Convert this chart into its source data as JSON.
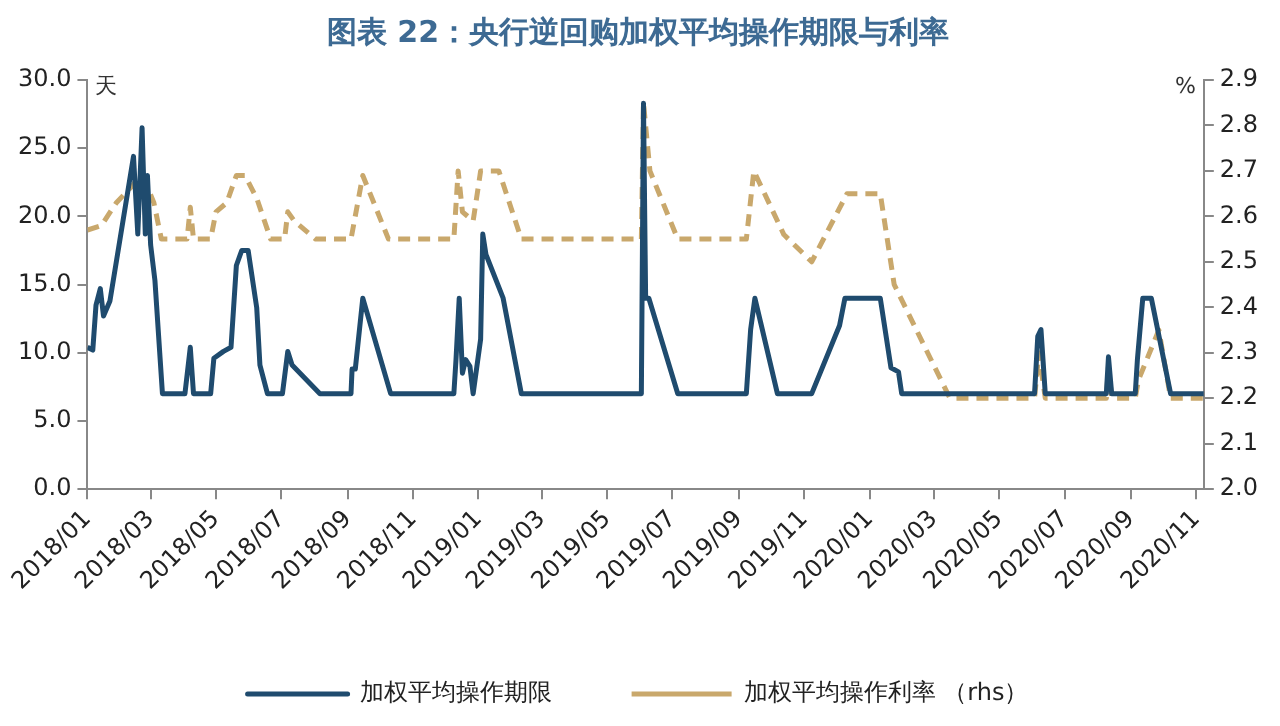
{
  "chart_data": {
    "type": "line",
    "title": "图表 22：央行逆回购加权平均操作期限与利率",
    "ylabel": "天",
    "y2label": "%",
    "xlim": [
      "2018-01-01",
      "2020-11-08"
    ],
    "xticks": [
      {
        "value": "2018-01-01",
        "label": "2018/01"
      },
      {
        "value": "2018-03-01",
        "label": "2018/03"
      },
      {
        "value": "2018-05-01",
        "label": "2018/05"
      },
      {
        "value": "2018-07-01",
        "label": "2018/07"
      },
      {
        "value": "2018-09-01",
        "label": "2018/09"
      },
      {
        "value": "2018-11-01",
        "label": "2018/11"
      },
      {
        "value": "2019-01-01",
        "label": "2019/01"
      },
      {
        "value": "2019-03-01",
        "label": "2019/03"
      },
      {
        "value": "2019-05-01",
        "label": "2019/05"
      },
      {
        "value": "2019-07-01",
        "label": "2019/07"
      },
      {
        "value": "2019-09-01",
        "label": "2019/09"
      },
      {
        "value": "2019-11-01",
        "label": "2019/11"
      },
      {
        "value": "2020-01-01",
        "label": "2020/01"
      },
      {
        "value": "2020-03-01",
        "label": "2020/03"
      },
      {
        "value": "2020-05-01",
        "label": "2020/05"
      },
      {
        "value": "2020-07-01",
        "label": "2020/07"
      },
      {
        "value": "2020-09-01",
        "label": "2020/09"
      },
      {
        "value": "2020-11-01",
        "label": "2020/11"
      }
    ],
    "ylim": [
      0,
      30
    ],
    "yticks": [
      {
        "value": 0,
        "label": "0.0"
      },
      {
        "value": 5,
        "label": "5.0"
      },
      {
        "value": 10,
        "label": "10.0"
      },
      {
        "value": 15,
        "label": "15.0"
      },
      {
        "value": 20,
        "label": "20.0"
      },
      {
        "value": 25,
        "label": "25.0"
      },
      {
        "value": 30,
        "label": "30.0"
      }
    ],
    "y2lim": [
      2.0,
      2.9
    ],
    "y2ticks": [
      {
        "value": 2.0,
        "label": "2.0"
      },
      2.1,
      2.2,
      2.3,
      2.4,
      2.5,
      2.6,
      2.7,
      2.8,
      2.9
    ],
    "grid": false,
    "legend": "bottom",
    "marker": "none",
    "series": [
      {
        "name": "加权平均操作期限",
        "color": "#1f4b6e",
        "line_style": "solid",
        "x": [
          "2018-01-01",
          "2018-01-06",
          "2018-01-09",
          "2018-01-13",
          "2018-01-16",
          "2018-01-22",
          "2018-02-13",
          "2018-02-17",
          "2018-02-21",
          "2018-02-24",
          "2018-02-26",
          "2018-03-01",
          "2018-03-05",
          "2018-03-12",
          "2018-04-02",
          "2018-04-07",
          "2018-04-10",
          "2018-04-26",
          "2018-04-29",
          "2018-05-08",
          "2018-05-15",
          "2018-05-20",
          "2018-05-25",
          "2018-05-31",
          "2018-06-08",
          "2018-06-11",
          "2018-06-18",
          "2018-07-02",
          "2018-07-07",
          "2018-07-11",
          "2018-08-06",
          "2018-09-04",
          "2018-09-05",
          "2018-09-08",
          "2018-09-15",
          "2018-10-11",
          "2018-12-09",
          "2018-12-11",
          "2018-12-14",
          "2018-12-17",
          "2018-12-20",
          "2018-12-24",
          "2018-12-27",
          "2019-01-03",
          "2019-01-05",
          "2019-01-08",
          "2019-01-24",
          "2019-02-10",
          "2019-06-02",
          "2019-06-04",
          "2019-06-06",
          "2019-06-09",
          "2019-07-06",
          "2019-09-08",
          "2019-09-12",
          "2019-09-16",
          "2019-10-07",
          "2019-11-08",
          "2019-12-04",
          "2019-12-09",
          "2020-01-11",
          "2020-01-21",
          "2020-01-28",
          "2020-01-31",
          "2020-06-03",
          "2020-06-06",
          "2020-06-09",
          "2020-06-13",
          "2020-08-09",
          "2020-08-11",
          "2020-08-14",
          "2020-09-05",
          "2020-09-07",
          "2020-09-12",
          "2020-09-20",
          "2020-10-08",
          "2020-11-08"
        ],
        "values": [
          10.4,
          10.2,
          13.5,
          14.7,
          12.7,
          13.8,
          24.4,
          18.7,
          26.5,
          18.7,
          23.0,
          17.9,
          15.3,
          7.0,
          7.0,
          10.4,
          7.0,
          7.0,
          9.6,
          10.1,
          10.4,
          16.4,
          17.5,
          17.5,
          13.3,
          9.1,
          7.0,
          7.0,
          10.1,
          9.1,
          7.0,
          7.0,
          8.8,
          8.8,
          14.0,
          7.0,
          7.0,
          9.5,
          14.0,
          8.5,
          9.5,
          9.0,
          7.0,
          11.0,
          18.7,
          17.2,
          14.0,
          7.0,
          7.0,
          28.3,
          14.0,
          14.0,
          7.0,
          7.0,
          11.7,
          14.0,
          7.0,
          7.0,
          12.0,
          14.0,
          14.0,
          8.9,
          8.6,
          7.0,
          7.0,
          11.2,
          11.7,
          7.0,
          7.0,
          9.7,
          7.0,
          7.0,
          9.5,
          14.0,
          14.0,
          7.0,
          7.0
        ]
      },
      {
        "name": "加权平均操作利率 （rhs）",
        "color": "#c9a86c",
        "line_style": "dashed",
        "axis": "y2",
        "x": [
          "2018-01-01",
          "2018-01-14",
          "2018-01-28",
          "2018-02-13",
          "2018-02-18",
          "2018-02-25",
          "2018-03-04",
          "2018-03-11",
          "2018-04-04",
          "2018-04-07",
          "2018-04-10",
          "2018-04-26",
          "2018-05-01",
          "2018-05-11",
          "2018-05-20",
          "2018-05-28",
          "2018-06-08",
          "2018-06-21",
          "2018-07-04",
          "2018-07-07",
          "2018-07-13",
          "2018-08-02",
          "2018-09-04",
          "2018-09-15",
          "2018-10-09",
          "2018-12-09",
          "2018-12-13",
          "2018-12-17",
          "2018-12-27",
          "2019-01-03",
          "2019-01-20",
          "2019-02-10",
          "2019-06-02",
          "2019-06-04",
          "2019-06-10",
          "2019-07-06",
          "2019-09-08",
          "2019-09-15",
          "2019-10-13",
          "2019-11-08",
          "2019-12-11",
          "2020-01-11",
          "2020-01-24",
          "2020-03-16",
          "2020-06-03",
          "2020-06-07",
          "2020-06-13",
          "2020-08-09",
          "2020-08-11",
          "2020-08-14",
          "2020-09-05",
          "2020-09-08",
          "2020-09-27",
          "2020-10-08",
          "2020-11-08"
        ],
        "values": [
          2.57,
          2.58,
          2.63,
          2.67,
          2.69,
          2.67,
          2.63,
          2.55,
          2.55,
          2.62,
          2.55,
          2.55,
          2.61,
          2.63,
          2.69,
          2.69,
          2.64,
          2.55,
          2.55,
          2.61,
          2.59,
          2.55,
          2.55,
          2.69,
          2.55,
          2.55,
          2.7,
          2.61,
          2.59,
          2.7,
          2.7,
          2.55,
          2.55,
          2.85,
          2.7,
          2.55,
          2.55,
          2.7,
          2.56,
          2.5,
          2.65,
          2.65,
          2.45,
          2.2,
          2.2,
          2.3,
          2.2,
          2.2,
          2.27,
          2.2,
          2.2,
          2.24,
          2.35,
          2.2,
          2.2
        ]
      }
    ]
  }
}
